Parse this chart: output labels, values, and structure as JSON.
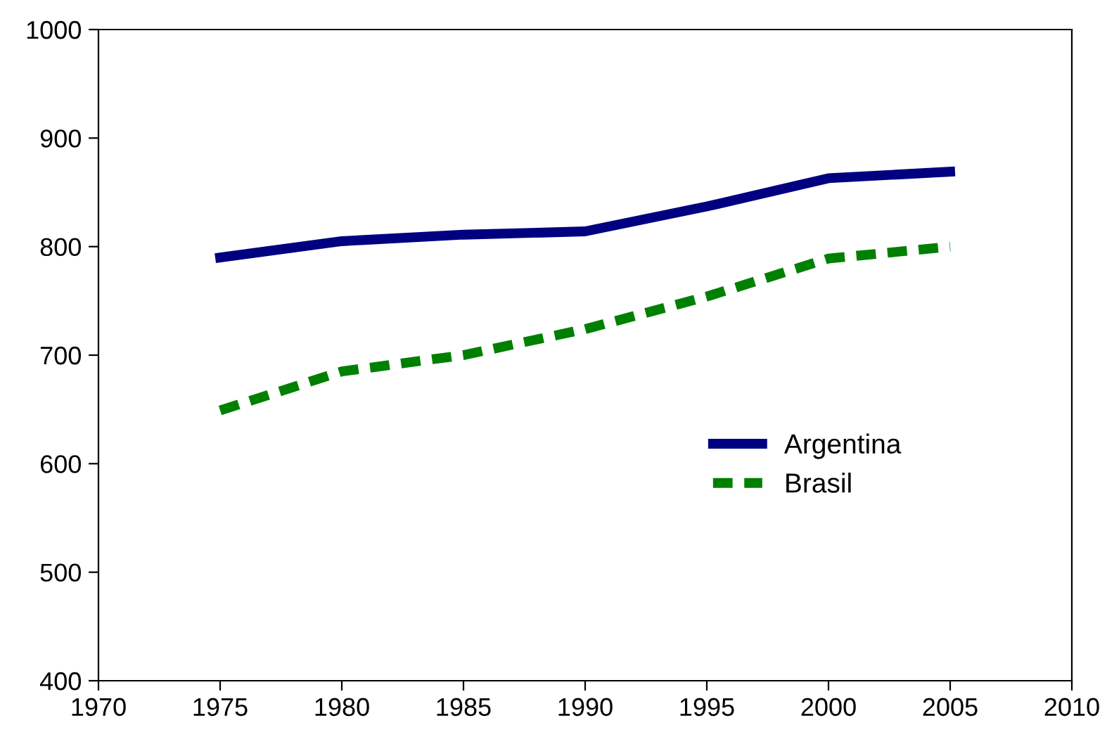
{
  "chart_data": {
    "type": "line",
    "x": [
      1975,
      1980,
      1985,
      1990,
      1995,
      2000,
      2005
    ],
    "series": [
      {
        "name": "Argentina",
        "color": "#000080",
        "values": [
          790,
          805,
          811,
          814,
          837,
          863,
          869
        ],
        "line_style": "solid"
      },
      {
        "name": "Brasil",
        "color": "#008000",
        "values": [
          649,
          685,
          700,
          724,
          754,
          789,
          800
        ],
        "line_style": "dashed"
      }
    ],
    "xlim": [
      1970,
      2010
    ],
    "xticks": [
      1970,
      1975,
      1980,
      1985,
      1990,
      1995,
      2000,
      2005,
      2010
    ],
    "ylim": [
      400,
      1000
    ],
    "yticks": [
      400,
      500,
      600,
      700,
      800,
      900,
      1000
    ],
    "grid": false,
    "legend": "center right",
    "marker": "none"
  }
}
